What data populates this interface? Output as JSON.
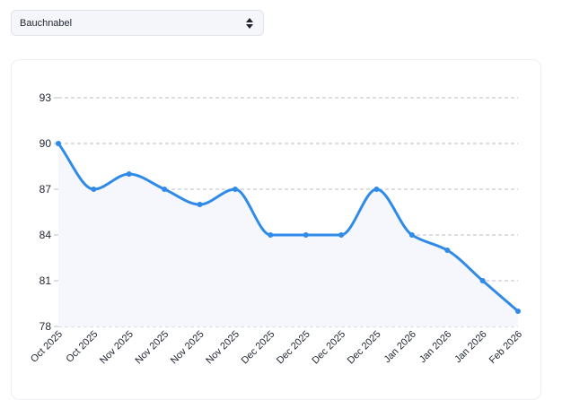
{
  "dropdown": {
    "selected": "Bauchnabel"
  },
  "colors": {
    "line": "#2f8ae8",
    "fill": "#f5f7fc",
    "grid": "#b8bcc4",
    "text": "#1f2430"
  },
  "chart_data": {
    "type": "line",
    "title": "",
    "xlabel": "",
    "ylabel": "",
    "ylim": [
      78,
      93
    ],
    "yticks": [
      78,
      81,
      84,
      87,
      90,
      93
    ],
    "grid": true,
    "x": [
      "Oct 2025",
      "Oct 2025",
      "Nov 2025",
      "Nov 2025",
      "Nov 2025",
      "Nov 2025",
      "Dec 2025",
      "Dec 2025",
      "Dec 2025",
      "Dec 2025",
      "Jan 2026",
      "Jan 2026",
      "Jan 2026",
      "Feb 2026"
    ],
    "series": [
      {
        "values": [
          90,
          87,
          88,
          87,
          86,
          87,
          84,
          84,
          84,
          87,
          84,
          83,
          81,
          79
        ]
      }
    ]
  }
}
